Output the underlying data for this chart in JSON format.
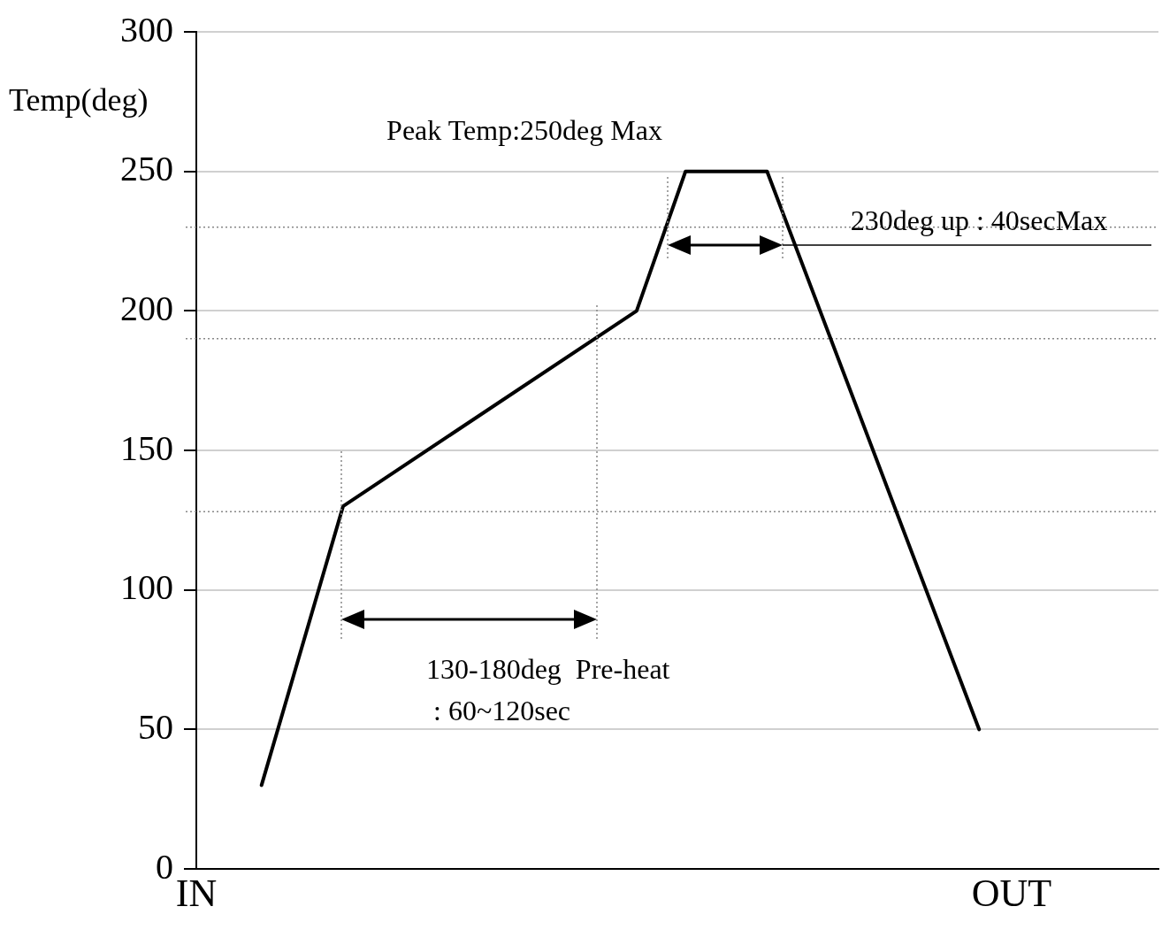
{
  "chart_data": {
    "type": "line",
    "ylabel": "Temp(deg)",
    "categories": [
      "IN",
      null,
      null,
      null,
      null,
      null,
      null,
      null,
      null,
      null,
      null,
      null,
      null,
      null,
      null,
      null,
      null,
      null,
      null,
      null,
      null,
      null,
      null,
      null,
      null,
      null,
      null,
      null,
      null,
      null,
      null,
      null,
      null,
      null,
      null,
      null,
      null,
      null,
      null,
      null,
      null,
      null,
      null,
      null,
      null,
      null,
      null,
      null,
      null,
      null,
      "OUT",
      null,
      null,
      null,
      null,
      null,
      null,
      null,
      null,
      null
    ],
    "series": [
      {
        "color": "#000000",
        "values": [
          null,
          null,
          null,
          null,
          30,
          null,
          null,
          null,
          null,
          130,
          null,
          null,
          null,
          null,
          null,
          null,
          null,
          null,
          null,
          null,
          null,
          null,
          null,
          null,
          null,
          null,
          null,
          200,
          null,
          null,
          250,
          null,
          null,
          null,
          null,
          250,
          null,
          null,
          null,
          null,
          null,
          null,
          null,
          null,
          null,
          null,
          null,
          null,
          50,
          null,
          null,
          null,
          null,
          null,
          null,
          null,
          null,
          null,
          null,
          null
        ]
      }
    ],
    "ylim": [
      0,
      300
    ],
    "yticks": [
      0,
      50,
      100,
      150,
      200,
      250,
      300
    ],
    "grid": "y",
    "legend": false,
    "marker": "none",
    "line_style": "solid",
    "ref_lines": [
      {
        "axis": "y",
        "value": 230,
        "line_style": "dotted",
        "color": "#888888"
      },
      {
        "axis": "y",
        "value": 190,
        "line_style": "dotted",
        "color": "#888888"
      },
      {
        "axis": "y",
        "value": 128,
        "line_style": "dotted",
        "color": "#888888"
      }
    ],
    "annotations": [
      "Peak Temp:250deg Max",
      "130-180deg  Pre-heat\n: 60~120sec",
      "230deg up : 40secMax"
    ]
  }
}
